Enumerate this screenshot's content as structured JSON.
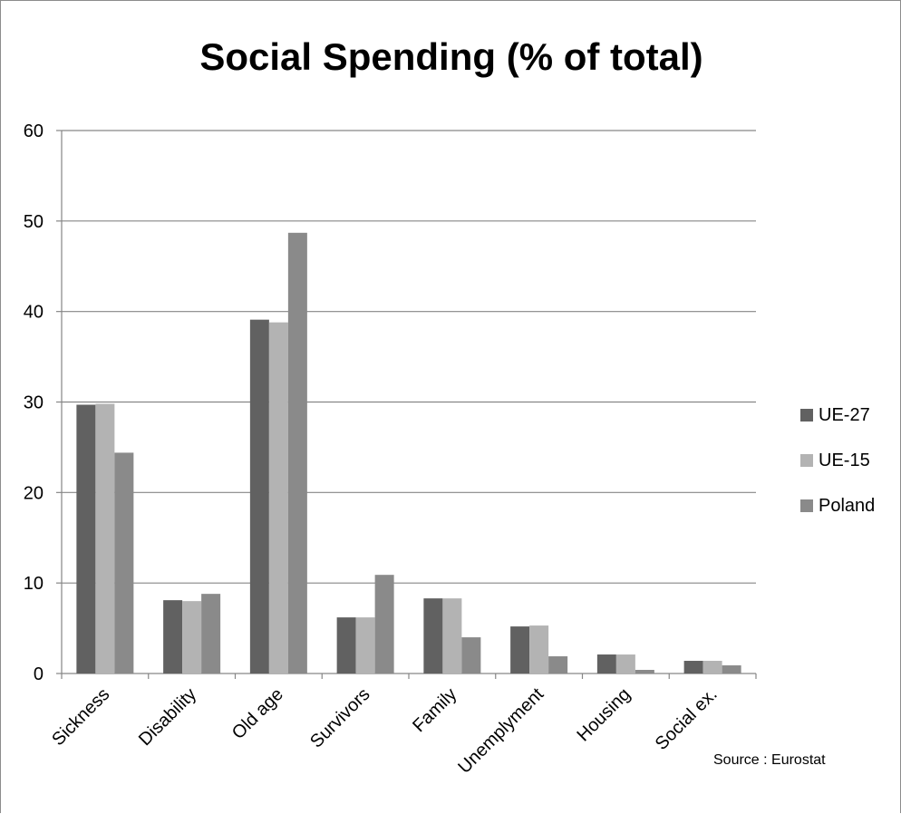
{
  "chart_data": {
    "type": "bar",
    "title": "Social Spending (% of total)",
    "categories": [
      "Sickness",
      "Disability",
      "Old age",
      "Survivors",
      "Family",
      "Unemplyment",
      "Housing",
      "Social ex."
    ],
    "series": [
      {
        "name": "UE-27",
        "color": "#616161",
        "values": [
          29.7,
          8.1,
          39.1,
          6.2,
          8.3,
          5.2,
          2.1,
          1.4
        ]
      },
      {
        "name": "UE-15",
        "color": "#b3b3b3",
        "values": [
          29.8,
          8.0,
          38.8,
          6.2,
          8.3,
          5.3,
          2.1,
          1.4
        ]
      },
      {
        "name": "Poland",
        "color": "#8a8a8a",
        "values": [
          24.4,
          8.8,
          48.7,
          10.9,
          4.0,
          1.9,
          0.4,
          0.9
        ]
      }
    ],
    "yticks": [
      "0",
      "10",
      "20",
      "30",
      "40",
      "50",
      "60"
    ],
    "ylim": [
      0,
      60
    ],
    "grid": true,
    "legend_position": "right",
    "source": "Source : Eurostat"
  }
}
